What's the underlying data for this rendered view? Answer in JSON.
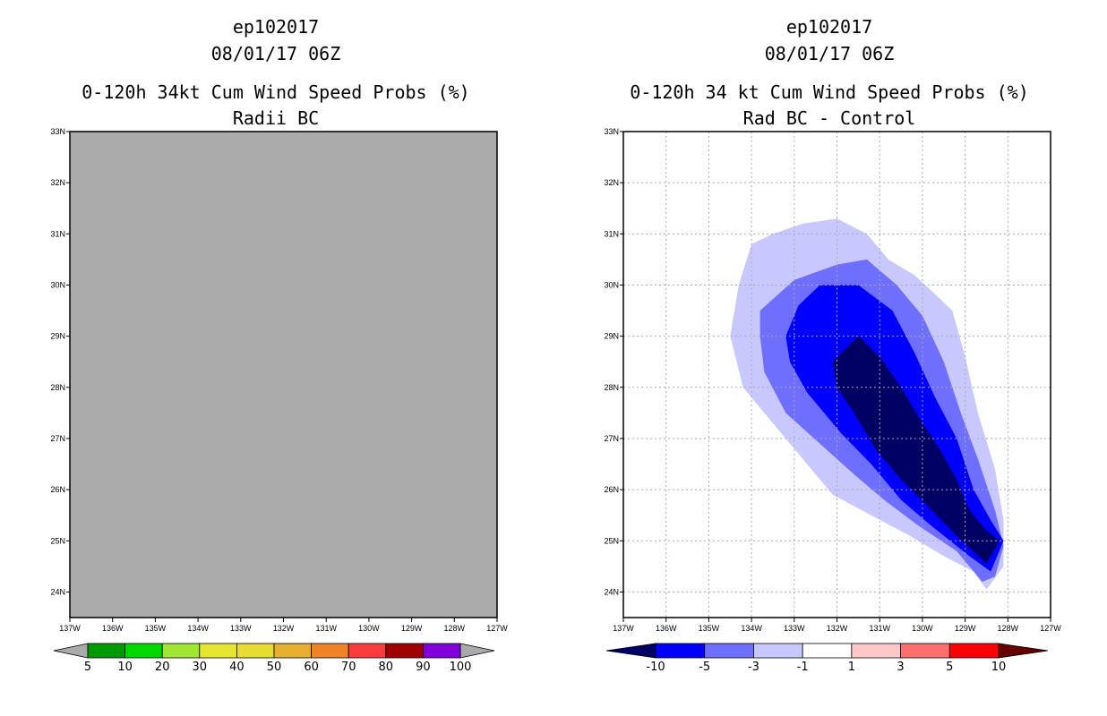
{
  "colors": {
    "land_gray": "#aaaaaa",
    "grid": "#aaaaaa",
    "left_scale": [
      "#aaaaaa",
      "#009a00",
      "#00d800",
      "#a0e632",
      "#e6e632",
      "#e6dc32",
      "#e6af2d",
      "#f08228",
      "#fa3c3c",
      "#a00000",
      "#8200dc",
      "#aaaaaa"
    ],
    "right_scale": [
      "#000064",
      "#0000ff",
      "#6e6eff",
      "#c8c8ff",
      "#ffffff",
      "#ffc8c8",
      "#ff6e6e",
      "#ff0000",
      "#640000"
    ]
  },
  "left_panel": {
    "storm": "ep102017",
    "datetime": "08/01/17 06Z",
    "title": "0-120h 34kt Cum Wind Speed Probs (%)",
    "subtitle": "Radii BC"
  },
  "right_panel": {
    "storm": "ep102017",
    "datetime": "08/01/17 06Z",
    "title": "0-120h 34 kt Cum Wind Speed Probs (%)",
    "subtitle": "Rad BC - Control"
  },
  "chart_data": [
    {
      "type": "contour",
      "title": "0-120h 34kt Cum Wind Speed Probs (%) - Radii BC",
      "xlim": [
        -137,
        -127
      ],
      "ylim": [
        23.5,
        33
      ],
      "x_ticks": [
        -137,
        -136,
        -135,
        -134,
        -133,
        -132,
        -131,
        -130,
        -129,
        -128,
        -127
      ],
      "x_tick_labels": [
        "137W",
        "136W",
        "135W",
        "134W",
        "133W",
        "132W",
        "131W",
        "130W",
        "129W",
        "128W",
        "127W"
      ],
      "y_ticks": [
        24,
        25,
        26,
        27,
        28,
        29,
        30,
        31,
        32,
        33
      ],
      "y_tick_labels": [
        "24N",
        "25N",
        "26N",
        "27N",
        "28N",
        "29N",
        "30N",
        "31N",
        "32N",
        "33N"
      ],
      "grid": false,
      "field": "uniform (no probabilities, 0%)",
      "colorbar_levels": [
        "5",
        "10",
        "20",
        "30",
        "40",
        "50",
        "60",
        "70",
        "80",
        "90",
        "100"
      ]
    },
    {
      "type": "contour",
      "title": "0-120h 34 kt Cum Wind Speed Probs (%) - Rad BC - Control",
      "xlim": [
        -137,
        -127
      ],
      "ylim": [
        23.5,
        33
      ],
      "x_ticks": [
        -137,
        -136,
        -135,
        -134,
        -133,
        -132,
        -131,
        -130,
        -129,
        -128,
        -127
      ],
      "x_tick_labels": [
        "137W",
        "136W",
        "135W",
        "134W",
        "133W",
        "132W",
        "131W",
        "130W",
        "129W",
        "128W",
        "127W"
      ],
      "y_ticks": [
        24,
        25,
        26,
        27,
        28,
        29,
        30,
        31,
        32,
        33
      ],
      "y_tick_labels": [
        "24N",
        "25N",
        "26N",
        "27N",
        "28N",
        "29N",
        "30N",
        "31N",
        "32N",
        "33N"
      ],
      "grid": true,
      "colorbar_levels": [
        "-10",
        "-5",
        "-3",
        "-1",
        "1",
        "3",
        "5",
        "10"
      ],
      "contours": [
        {
          "level": "<-1",
          "color_index": 3,
          "polygon": [
            [
              -134.5,
              29.0
            ],
            [
              -134.3,
              30.0
            ],
            [
              -134.0,
              30.8
            ],
            [
              -133.5,
              31.0
            ],
            [
              -132.8,
              31.2
            ],
            [
              -132.0,
              31.3
            ],
            [
              -131.3,
              31.0
            ],
            [
              -130.8,
              30.5
            ],
            [
              -130.2,
              30.2
            ],
            [
              -129.8,
              29.9
            ],
            [
              -129.3,
              29.5
            ],
            [
              -129.0,
              28.6
            ],
            [
              -128.7,
              27.5
            ],
            [
              -128.3,
              26.4
            ],
            [
              -128.1,
              25.4
            ],
            [
              -128.1,
              24.5
            ],
            [
              -128.5,
              24.05
            ],
            [
              -128.8,
              24.4
            ],
            [
              -129.5,
              24.7
            ],
            [
              -130.3,
              25.1
            ],
            [
              -131.2,
              25.5
            ],
            [
              -132.1,
              25.9
            ],
            [
              -132.8,
              26.6
            ],
            [
              -133.6,
              27.4
            ],
            [
              -134.2,
              28.0
            ],
            [
              -134.5,
              29.0
            ]
          ]
        },
        {
          "level": "<-3",
          "color_index": 2,
          "polygon": [
            [
              -133.8,
              29.0
            ],
            [
              -133.8,
              29.5
            ],
            [
              -133.0,
              30.1
            ],
            [
              -132.0,
              30.4
            ],
            [
              -131.3,
              30.5
            ],
            [
              -130.6,
              30.0
            ],
            [
              -130.0,
              29.4
            ],
            [
              -129.5,
              28.5
            ],
            [
              -129.1,
              27.5
            ],
            [
              -128.7,
              26.6
            ],
            [
              -128.3,
              25.6
            ],
            [
              -128.1,
              24.9
            ],
            [
              -128.3,
              24.3
            ],
            [
              -128.6,
              24.2
            ],
            [
              -129.2,
              24.8
            ],
            [
              -130.1,
              25.3
            ],
            [
              -130.9,
              25.8
            ],
            [
              -131.6,
              26.3
            ],
            [
              -132.4,
              26.9
            ],
            [
              -133.2,
              27.5
            ],
            [
              -133.7,
              28.3
            ],
            [
              -133.8,
              29.0
            ]
          ]
        },
        {
          "level": "<-5",
          "color_index": 1,
          "polygon": [
            [
              -133.2,
              29.0
            ],
            [
              -132.9,
              29.6
            ],
            [
              -132.4,
              30.0
            ],
            [
              -131.5,
              30.0
            ],
            [
              -130.7,
              29.5
            ],
            [
              -130.2,
              28.7
            ],
            [
              -129.7,
              27.8
            ],
            [
              -129.2,
              27.0
            ],
            [
              -128.8,
              26.0
            ],
            [
              -128.4,
              25.4
            ],
            [
              -128.1,
              25.0
            ],
            [
              -128.4,
              24.4
            ],
            [
              -128.9,
              24.7
            ],
            [
              -129.8,
              25.3
            ],
            [
              -130.5,
              25.8
            ],
            [
              -131.2,
              26.5
            ],
            [
              -131.9,
              27.1
            ],
            [
              -132.7,
              27.9
            ],
            [
              -133.1,
              28.5
            ],
            [
              -133.2,
              29.0
            ]
          ]
        },
        {
          "level": "<-10",
          "color_index": 0,
          "polygon": [
            [
              -132.1,
              28.5
            ],
            [
              -131.5,
              29.0
            ],
            [
              -131.0,
              28.6
            ],
            [
              -130.5,
              28.0
            ],
            [
              -130.0,
              27.3
            ],
            [
              -129.6,
              26.8
            ],
            [
              -129.2,
              26.2
            ],
            [
              -128.9,
              25.6
            ],
            [
              -128.5,
              25.2
            ],
            [
              -128.2,
              25.0
            ],
            [
              -128.5,
              24.55
            ],
            [
              -129.2,
              25.1
            ],
            [
              -129.9,
              25.7
            ],
            [
              -130.5,
              26.2
            ],
            [
              -131.1,
              26.8
            ],
            [
              -131.6,
              27.5
            ],
            [
              -132.0,
              28.0
            ],
            [
              -132.1,
              28.5
            ]
          ]
        }
      ]
    }
  ]
}
